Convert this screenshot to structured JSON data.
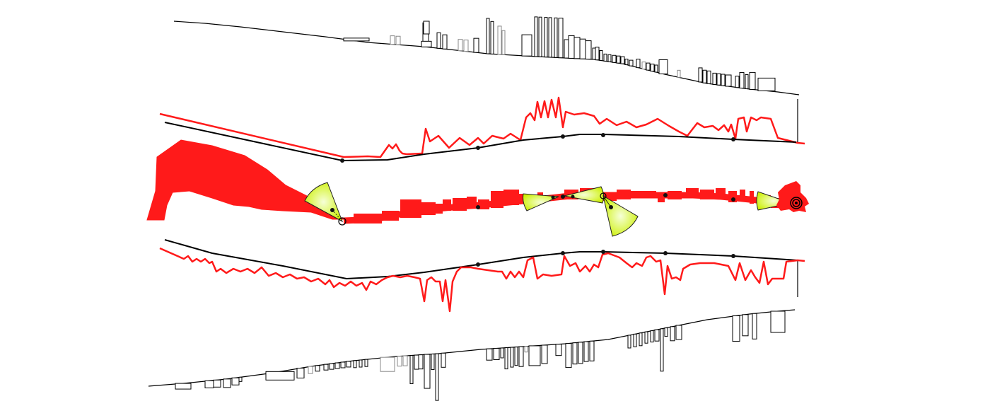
{
  "diagram": {
    "colors": {
      "background": "#ffffff",
      "route": "#000000",
      "profile": "#ff1a1a",
      "viewshed_outer": "#ccf000",
      "viewshed_inner": "#f6ffd8"
    },
    "layers": [
      "upper-skyline-elevation",
      "upper-route-profile",
      "plan-footprint",
      "lower-route-profile",
      "lower-skyline-elevation"
    ],
    "viewpoint_count": 6,
    "icons": [
      "viewshed-cone-icon",
      "viewpoint-node-icon",
      "target-marker-icon"
    ]
  }
}
